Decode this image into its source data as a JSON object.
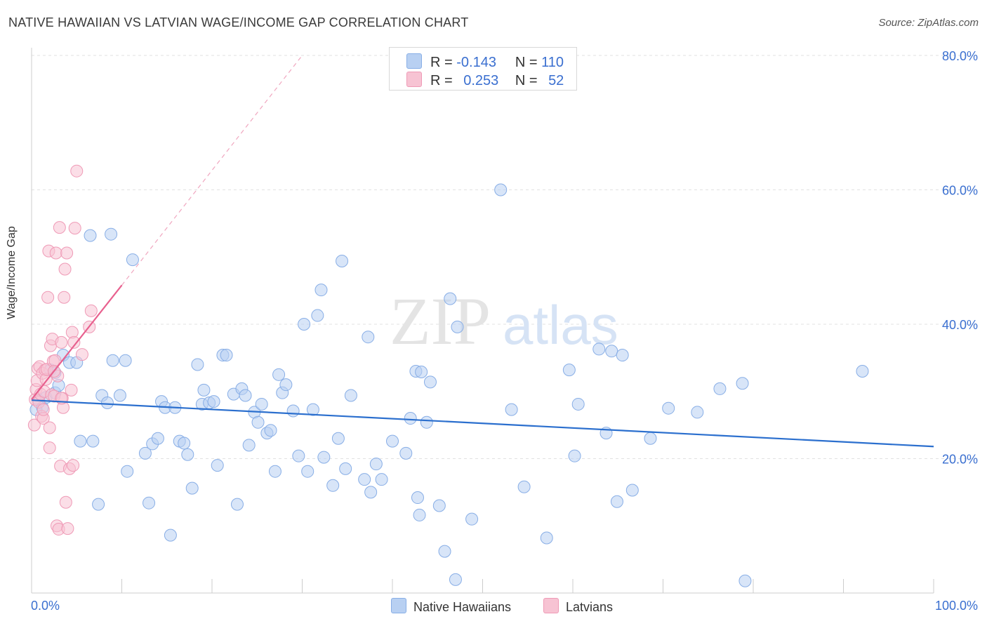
{
  "title": "NATIVE HAWAIIAN VS LATVIAN WAGE/INCOME GAP CORRELATION CHART",
  "source": "Source: ZipAtlas.com",
  "watermark": {
    "zip": "ZIP",
    "atlas": "atlas"
  },
  "colors": {
    "blue_fill": "#b8d0f2",
    "blue_stroke": "#88aee6",
    "blue_line": "#2b6fce",
    "pink_fill": "#f7c3d3",
    "pink_stroke": "#ef9ab6",
    "pink_line": "#e8608e",
    "axis_text": "#3a6fd0"
  },
  "legend_top": [
    {
      "r_label": "R =",
      "r_value": "-0.143",
      "n_label": "N =",
      "n_value": "110",
      "color": "#b8d0f2"
    },
    {
      "r_label": "R =",
      "r_value": "0.253",
      "n_label": "N =",
      "n_value": "52",
      "color": "#f7c3d3"
    }
  ],
  "legend_bottom": [
    {
      "label": "Native Hawaiians",
      "color": "#b8d0f2"
    },
    {
      "label": "Latvians",
      "color": "#f7c3d3"
    }
  ],
  "chart_data": {
    "type": "scatter",
    "title": "NATIVE HAWAIIAN VS LATVIAN WAGE/INCOME GAP CORRELATION CHART",
    "xlabel": "",
    "ylabel": "Wage/Income Gap",
    "xlim": [
      0,
      100
    ],
    "ylim": [
      0,
      80
    ],
    "x_tick_labels": [
      "0.0%",
      "100.0%"
    ],
    "y_ticks": [
      20,
      40,
      60,
      80
    ],
    "y_tick_labels": [
      "20.0%",
      "40.0%",
      "60.0%",
      "80.0%"
    ],
    "grid": true,
    "legend_position": "bottom",
    "series": [
      {
        "name": "Native Hawaiians",
        "r": -0.143,
        "n": 110,
        "trend": {
          "x": [
            0,
            100
          ],
          "y": [
            28.7,
            21.8
          ]
        },
        "points": [
          [
            0.5,
            27.3
          ],
          [
            0.8,
            28.7
          ],
          [
            1.2,
            27.6
          ],
          [
            1.6,
            29.1
          ],
          [
            2.1,
            33.2
          ],
          [
            2.6,
            29.8
          ],
          [
            3.0,
            30.9
          ],
          [
            3.5,
            35.4
          ],
          [
            4.2,
            34.3
          ],
          [
            5.0,
            34.3
          ],
          [
            5.4,
            22.6
          ],
          [
            6.5,
            53.2
          ],
          [
            6.8,
            22.6
          ],
          [
            7.4,
            13.2
          ],
          [
            7.8,
            29.4
          ],
          [
            8.4,
            28.3
          ],
          [
            8.8,
            53.4
          ],
          [
            9.0,
            34.6
          ],
          [
            9.8,
            29.4
          ],
          [
            10.4,
            34.6
          ],
          [
            10.6,
            18.1
          ],
          [
            11.2,
            49.6
          ],
          [
            12.6,
            20.8
          ],
          [
            13.0,
            13.4
          ],
          [
            13.4,
            22.2
          ],
          [
            14.0,
            23.0
          ],
          [
            14.4,
            28.5
          ],
          [
            14.8,
            27.6
          ],
          [
            15.4,
            8.6
          ],
          [
            15.9,
            27.6
          ],
          [
            16.4,
            22.6
          ],
          [
            16.9,
            22.3
          ],
          [
            17.3,
            20.6
          ],
          [
            17.8,
            15.6
          ],
          [
            18.4,
            34.0
          ],
          [
            18.9,
            28.1
          ],
          [
            19.1,
            30.2
          ],
          [
            19.7,
            28.3
          ],
          [
            20.2,
            28.5
          ],
          [
            20.6,
            19.0
          ],
          [
            21.2,
            35.4
          ],
          [
            21.6,
            35.4
          ],
          [
            22.4,
            29.6
          ],
          [
            22.8,
            13.2
          ],
          [
            23.3,
            30.4
          ],
          [
            23.7,
            29.4
          ],
          [
            24.1,
            22.0
          ],
          [
            24.7,
            26.9
          ],
          [
            25.1,
            25.4
          ],
          [
            25.5,
            28.1
          ],
          [
            26.1,
            23.8
          ],
          [
            26.5,
            24.2
          ],
          [
            27.0,
            18.1
          ],
          [
            27.4,
            32.5
          ],
          [
            27.8,
            29.8
          ],
          [
            28.2,
            31.0
          ],
          [
            29.0,
            27.1
          ],
          [
            29.6,
            20.4
          ],
          [
            30.2,
            40.0
          ],
          [
            30.6,
            18.1
          ],
          [
            31.2,
            27.3
          ],
          [
            31.7,
            41.3
          ],
          [
            32.1,
            45.1
          ],
          [
            32.4,
            20.2
          ],
          [
            33.4,
            16.0
          ],
          [
            34.0,
            23.0
          ],
          [
            34.4,
            49.4
          ],
          [
            34.8,
            18.5
          ],
          [
            35.4,
            29.4
          ],
          [
            36.9,
            16.9
          ],
          [
            37.3,
            38.1
          ],
          [
            37.6,
            15.0
          ],
          [
            38.2,
            19.2
          ],
          [
            38.8,
            16.9
          ],
          [
            40.0,
            22.6
          ],
          [
            41.5,
            20.8
          ],
          [
            42.0,
            26.0
          ],
          [
            42.6,
            33.0
          ],
          [
            42.8,
            14.2
          ],
          [
            43.0,
            11.6
          ],
          [
            43.2,
            32.9
          ],
          [
            43.8,
            25.4
          ],
          [
            44.2,
            31.4
          ],
          [
            45.2,
            13.0
          ],
          [
            45.8,
            6.2
          ],
          [
            46.4,
            43.8
          ],
          [
            47.2,
            39.6
          ],
          [
            48.8,
            11.0
          ],
          [
            52.0,
            60.0
          ],
          [
            53.2,
            27.3
          ],
          [
            54.6,
            15.8
          ],
          [
            57.1,
            8.2
          ],
          [
            59.6,
            33.2
          ],
          [
            60.2,
            20.4
          ],
          [
            60.6,
            28.1
          ],
          [
            62.9,
            36.3
          ],
          [
            63.7,
            23.8
          ],
          [
            64.3,
            36.0
          ],
          [
            64.9,
            13.6
          ],
          [
            65.5,
            35.4
          ],
          [
            66.6,
            15.3
          ],
          [
            68.6,
            23.0
          ],
          [
            70.6,
            27.5
          ],
          [
            73.8,
            26.9
          ],
          [
            76.3,
            30.4
          ],
          [
            78.8,
            31.2
          ],
          [
            47.0,
            2.0
          ],
          [
            79.1,
            1.8
          ],
          [
            92.1,
            33.0
          ],
          [
            2.6,
            32.8
          ]
        ]
      },
      {
        "name": "Latvians",
        "r": 0.253,
        "n": 52,
        "trend": {
          "x": [
            0,
            10
          ],
          "y": [
            28.8,
            45.8
          ]
        },
        "trend_extension": {
          "x": [
            10,
            30
          ],
          "y": [
            45.8,
            80
          ]
        },
        "points": [
          [
            0.3,
            25.0
          ],
          [
            0.4,
            28.8
          ],
          [
            0.5,
            30.3
          ],
          [
            0.6,
            31.6
          ],
          [
            0.7,
            33.4
          ],
          [
            0.8,
            28.4
          ],
          [
            0.9,
            33.7
          ],
          [
            1.0,
            29.6
          ],
          [
            1.1,
            26.3
          ],
          [
            1.2,
            32.7
          ],
          [
            1.3,
            26.0
          ],
          [
            1.4,
            30.0
          ],
          [
            1.5,
            33.2
          ],
          [
            1.6,
            31.8
          ],
          [
            1.7,
            33.3
          ],
          [
            1.8,
            44.0
          ],
          [
            1.9,
            50.9
          ],
          [
            2.0,
            21.6
          ],
          [
            2.1,
            36.8
          ],
          [
            2.2,
            29.5
          ],
          [
            2.3,
            37.8
          ],
          [
            2.4,
            34.5
          ],
          [
            2.5,
            29.3
          ],
          [
            2.6,
            34.6
          ],
          [
            2.7,
            50.6
          ],
          [
            2.8,
            10.0
          ],
          [
            2.9,
            32.3
          ],
          [
            3.0,
            9.5
          ],
          [
            3.1,
            54.4
          ],
          [
            3.2,
            18.9
          ],
          [
            3.3,
            37.3
          ],
          [
            3.4,
            29.0
          ],
          [
            3.5,
            27.6
          ],
          [
            3.6,
            44.0
          ],
          [
            3.7,
            48.2
          ],
          [
            3.8,
            13.5
          ],
          [
            3.9,
            50.6
          ],
          [
            4.0,
            9.6
          ],
          [
            4.2,
            18.5
          ],
          [
            4.4,
            30.2
          ],
          [
            4.5,
            38.8
          ],
          [
            4.6,
            19.0
          ],
          [
            4.7,
            37.3
          ],
          [
            4.8,
            54.3
          ],
          [
            5.0,
            62.8
          ],
          [
            5.6,
            35.5
          ],
          [
            6.4,
            39.6
          ],
          [
            6.6,
            42.0
          ],
          [
            2.5,
            33.0
          ],
          [
            1.3,
            27.3
          ],
          [
            3.3,
            29.0
          ],
          [
            2.0,
            24.6
          ]
        ]
      }
    ]
  }
}
